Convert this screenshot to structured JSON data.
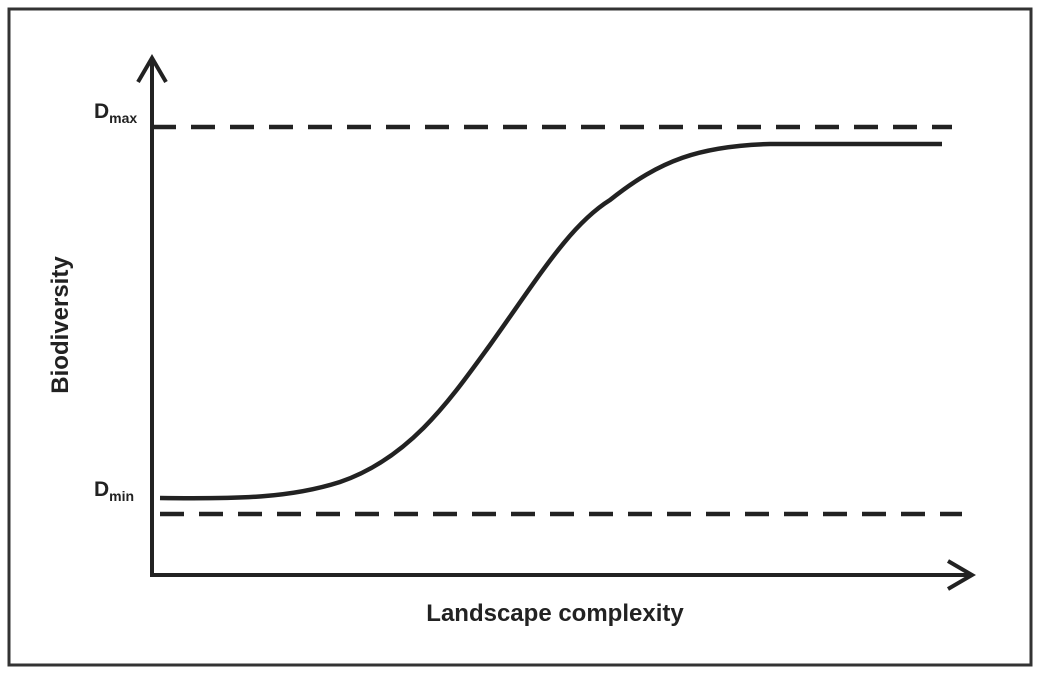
{
  "y_axis_label": "Biodiversity",
  "x_axis_label": "Landscape complexity",
  "upper_level": {
    "base": "D",
    "subscript": "max"
  },
  "lower_level": {
    "base": "D",
    "subscript": "min"
  }
}
